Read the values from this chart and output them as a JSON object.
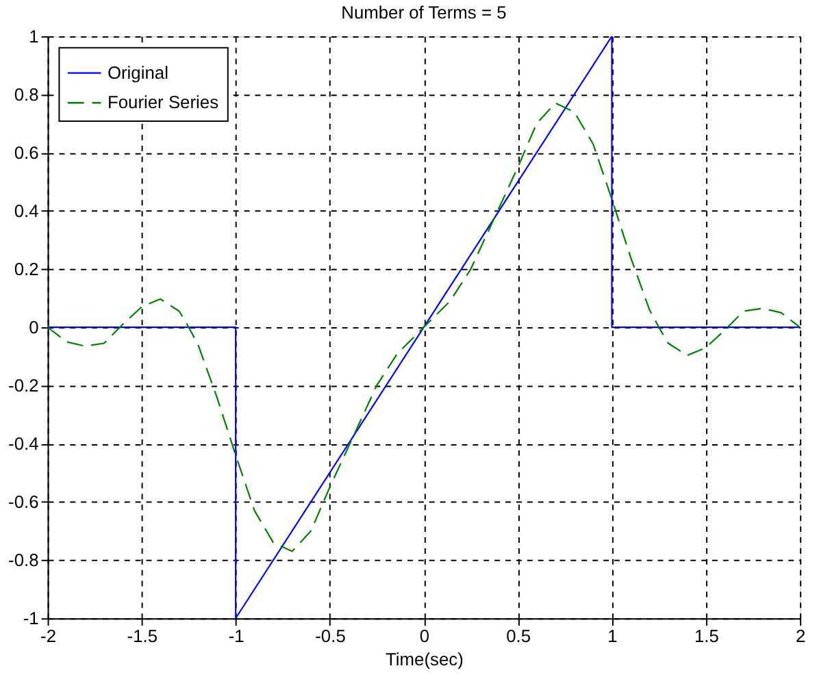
{
  "chart_data": {
    "type": "line",
    "title": "Number of Terms = 5",
    "xlabel": "Time(sec)",
    "xlim": [
      -2,
      2
    ],
    "xticks": [
      -2,
      -1.5,
      -1,
      -0.5,
      0,
      0.5,
      1,
      1.5,
      2
    ],
    "ylim": [
      -1,
      1
    ],
    "yticks": [
      -1,
      -0.8,
      -0.6,
      -0.4,
      -0.2,
      0,
      0.2,
      0.4,
      0.6,
      0.8,
      1
    ],
    "grid": true,
    "legend": "top left",
    "series": [
      {
        "name": "Original",
        "color": "#0000ff",
        "line_style": "solid",
        "x": [
          -2,
          -1,
          -1,
          1,
          1,
          2
        ],
        "values": [
          0,
          0,
          -1,
          1,
          0,
          0
        ]
      },
      {
        "name": "Fourier Series",
        "color": "#008000",
        "line_style": "dashed",
        "x": [
          -2,
          -1.9,
          -1.8,
          -1.7,
          -1.6,
          -1.5,
          -1.4,
          -1.3,
          -1.25,
          -1.2,
          -1.1,
          -1,
          -0.9,
          -0.8,
          -0.7,
          -0.6,
          -0.5,
          -0.4,
          -0.25,
          -0.14,
          0,
          0.14,
          0.25,
          0.4,
          0.5,
          0.6,
          0.7,
          0.8,
          0.9,
          1,
          1.1,
          1.2,
          1.25,
          1.3,
          1.4,
          1.5,
          1.6,
          1.7,
          1.8,
          1.9,
          2
        ],
        "values": [
          0,
          -0.05,
          -0.065,
          -0.055,
          0.01,
          0.07,
          0.097,
          0.055,
          0,
          -0.06,
          -0.24,
          -0.44,
          -0.63,
          -0.74,
          -0.77,
          -0.7,
          -0.55,
          -0.41,
          -0.2,
          -0.09,
          0,
          0.09,
          0.2,
          0.41,
          0.55,
          0.7,
          0.77,
          0.74,
          0.63,
          0.44,
          0.24,
          0.06,
          0,
          -0.055,
          -0.097,
          -0.07,
          -0.01,
          0.055,
          0.065,
          0.05,
          0
        ]
      }
    ]
  }
}
